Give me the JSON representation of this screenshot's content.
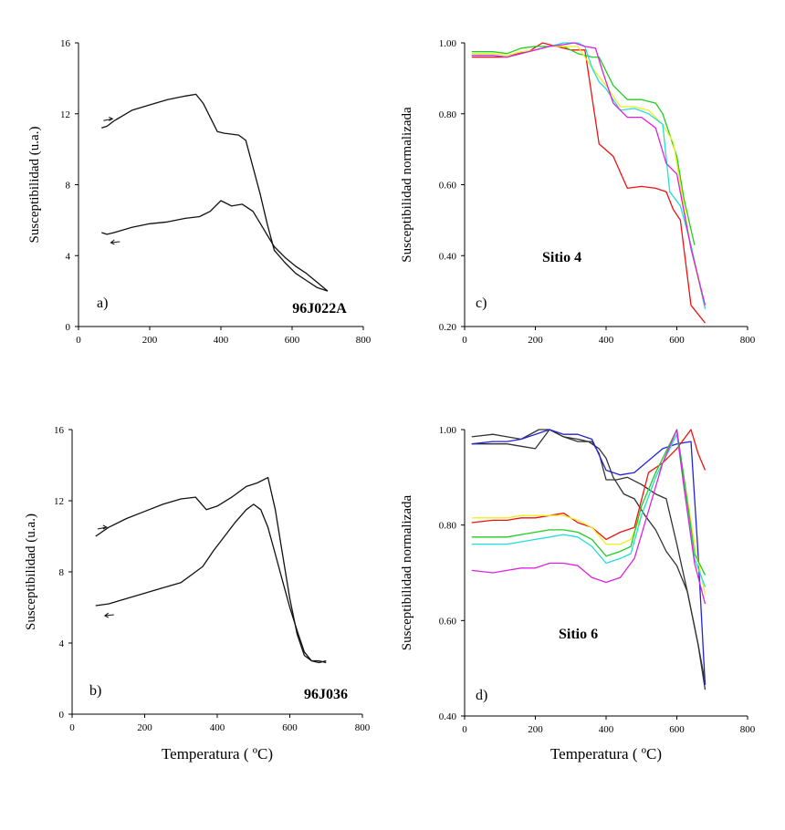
{
  "chart_data": [
    {
      "type": "line",
      "panel": "a)",
      "sample_label": "96J022A",
      "ylabel": "Susceptibilidad (u.a.)",
      "xlabel": "",
      "xlim": [
        0,
        800
      ],
      "ylim": [
        0,
        16
      ],
      "xticks": [
        "0",
        "200",
        "400",
        "600",
        "800"
      ],
      "yticks": [
        "0",
        "4",
        "8",
        "12",
        "16"
      ],
      "series": [
        {
          "name": "calentamiento",
          "color": "#111111",
          "x": [
            65,
            80,
            100,
            150,
            200,
            250,
            300,
            330,
            350,
            370,
            390,
            410,
            450,
            470,
            490,
            510,
            530,
            550,
            580,
            610,
            640,
            670,
            700
          ],
          "y": [
            11.2,
            11.3,
            11.6,
            12.2,
            12.5,
            12.8,
            13.0,
            13.1,
            12.6,
            11.8,
            11.0,
            10.9,
            10.8,
            10.5,
            9.0,
            7.5,
            5.8,
            4.3,
            3.6,
            3.0,
            2.6,
            2.2,
            2.0
          ]
        },
        {
          "name": "enfriamiento",
          "color": "#111111",
          "x": [
            65,
            80,
            100,
            150,
            200,
            250,
            300,
            340,
            370,
            400,
            430,
            460,
            490,
            520,
            550,
            580,
            610,
            640,
            670,
            700
          ],
          "y": [
            5.3,
            5.2,
            5.3,
            5.6,
            5.8,
            5.9,
            6.1,
            6.2,
            6.5,
            7.1,
            6.8,
            6.9,
            6.5,
            5.5,
            4.5,
            3.9,
            3.4,
            3.0,
            2.5,
            2.0
          ]
        }
      ]
    },
    {
      "type": "line",
      "panel": "b)",
      "sample_label": "96J036",
      "ylabel": "Susceptibilidad (u.a.)",
      "xlabel": "Temperatura ( ºC)",
      "xlim": [
        0,
        800
      ],
      "ylim": [
        0,
        16
      ],
      "xticks": [
        "0",
        "200",
        "400",
        "600",
        "800"
      ],
      "yticks": [
        "0",
        "4",
        "8",
        "12",
        "16"
      ],
      "series": [
        {
          "name": "calentamiento",
          "color": "#111111",
          "x": [
            65,
            100,
            150,
            200,
            250,
            300,
            340,
            370,
            400,
            440,
            480,
            510,
            540,
            560,
            580,
            600,
            620,
            640,
            660,
            680,
            700
          ],
          "y": [
            10.0,
            10.5,
            11.0,
            11.4,
            11.8,
            12.1,
            12.2,
            11.5,
            11.7,
            12.2,
            12.8,
            13.0,
            13.3,
            11.5,
            9.0,
            6.5,
            4.5,
            3.3,
            3.0,
            3.0,
            2.9
          ]
        },
        {
          "name": "enfriamiento",
          "color": "#111111",
          "x": [
            65,
            100,
            150,
            200,
            250,
            300,
            340,
            360,
            390,
            420,
            450,
            480,
            500,
            520,
            540,
            560,
            580,
            600,
            620,
            640,
            660,
            680,
            700
          ],
          "y": [
            6.1,
            6.2,
            6.5,
            6.8,
            7.1,
            7.4,
            8.0,
            8.3,
            9.2,
            10.0,
            10.8,
            11.5,
            11.8,
            11.5,
            10.5,
            9.0,
            7.5,
            6.0,
            4.7,
            3.5,
            3.0,
            2.9,
            3.0
          ]
        }
      ]
    },
    {
      "type": "line",
      "panel": "c)",
      "sample_label": "Sitio 4",
      "ylabel": "Susceptibilidad normalizada",
      "xlabel": "",
      "xlim": [
        0,
        800
      ],
      "ylim": [
        0.2,
        1.0
      ],
      "xticks": [
        "0",
        "200",
        "400",
        "600",
        "800"
      ],
      "yticks": [
        "0.20",
        "0.40",
        "0.60",
        "0.80",
        "1.00"
      ],
      "series": [
        {
          "name": "rojo",
          "color": "#ee1111",
          "x": [
            20,
            80,
            120,
            150,
            180,
            220,
            260,
            300,
            340,
            380,
            420,
            460,
            500,
            540,
            570,
            590,
            610,
            640,
            680
          ],
          "y": [
            0.96,
            0.96,
            0.96,
            0.97,
            0.975,
            1.0,
            0.99,
            0.98,
            0.98,
            0.715,
            0.68,
            0.59,
            0.595,
            0.59,
            0.58,
            0.53,
            0.5,
            0.26,
            0.21
          ]
        },
        {
          "name": "verde",
          "color": "#22cc22",
          "x": [
            20,
            80,
            120,
            160,
            200,
            240,
            280,
            320,
            360,
            380,
            420,
            460,
            500,
            540,
            560,
            580,
            600,
            620,
            650
          ],
          "y": [
            0.975,
            0.975,
            0.97,
            0.985,
            0.99,
            0.99,
            0.99,
            0.97,
            0.96,
            0.96,
            0.88,
            0.84,
            0.84,
            0.83,
            0.8,
            0.74,
            0.68,
            0.56,
            0.43
          ]
        },
        {
          "name": "amarillo",
          "color": "#eeee22",
          "x": [
            20,
            80,
            120,
            160,
            200,
            240,
            280,
            320,
            360,
            400,
            440,
            480,
            520,
            560,
            590,
            610,
            640,
            680
          ],
          "y": [
            0.97,
            0.97,
            0.965,
            0.975,
            0.98,
            0.99,
            0.99,
            0.99,
            0.93,
            0.88,
            0.82,
            0.82,
            0.81,
            0.77,
            0.72,
            0.6,
            0.42,
            0.25
          ]
        },
        {
          "name": "cian",
          "color": "#22dddd",
          "x": [
            20,
            80,
            120,
            160,
            200,
            240,
            280,
            320,
            340,
            360,
            380,
            400,
            440,
            480,
            520,
            560,
            580,
            610,
            640,
            680
          ],
          "y": [
            0.965,
            0.965,
            0.96,
            0.97,
            0.98,
            0.99,
            1.0,
            1.0,
            0.99,
            0.93,
            0.89,
            0.87,
            0.81,
            0.815,
            0.8,
            0.77,
            0.58,
            0.54,
            0.43,
            0.25
          ]
        },
        {
          "name": "magenta",
          "color": "#dd22dd",
          "x": [
            20,
            80,
            120,
            160,
            200,
            240,
            280,
            310,
            340,
            370,
            390,
            420,
            460,
            500,
            540,
            570,
            600,
            640,
            680
          ],
          "y": [
            0.965,
            0.965,
            0.96,
            0.97,
            0.98,
            0.99,
            0.995,
            1.0,
            0.99,
            0.985,
            0.92,
            0.83,
            0.79,
            0.79,
            0.76,
            0.66,
            0.63,
            0.42,
            0.26
          ]
        }
      ]
    },
    {
      "type": "line",
      "panel": "d)",
      "sample_label": "Sitio 6",
      "ylabel": "Susceptibilidad normalizada",
      "xlabel": "Temperatura ( ºC)",
      "xlim": [
        0,
        800
      ],
      "ylim": [
        0.4,
        1.0
      ],
      "xticks": [
        "0",
        "200",
        "400",
        "600",
        "800"
      ],
      "yticks": [
        "0.40",
        "0.60",
        "0.80",
        "1.00"
      ],
      "series": [
        {
          "name": "negro 1",
          "color": "#333333",
          "x": [
            20,
            80,
            120,
            160,
            210,
            240,
            280,
            320,
            350,
            380,
            400,
            420,
            450,
            480,
            510,
            540,
            570,
            600,
            630,
            660,
            680
          ],
          "y": [
            0.985,
            0.99,
            0.985,
            0.98,
            1.0,
            1.0,
            0.985,
            0.98,
            0.975,
            0.96,
            0.94,
            0.9,
            0.865,
            0.855,
            0.82,
            0.79,
            0.745,
            0.715,
            0.66,
            0.55,
            0.47
          ]
        },
        {
          "name": "negro 2",
          "color": "#333333",
          "x": [
            20,
            80,
            120,
            160,
            200,
            240,
            280,
            320,
            360,
            380,
            400,
            430,
            460,
            500,
            540,
            570,
            600,
            630,
            660,
            680
          ],
          "y": [
            0.97,
            0.97,
            0.97,
            0.965,
            0.96,
            1.0,
            0.985,
            0.975,
            0.975,
            0.95,
            0.895,
            0.895,
            0.9,
            0.885,
            0.865,
            0.855,
            0.76,
            0.66,
            0.55,
            0.455
          ]
        },
        {
          "name": "azul",
          "color": "#2222dd",
          "x": [
            20,
            80,
            120,
            160,
            200,
            240,
            280,
            320,
            360,
            400,
            440,
            480,
            520,
            560,
            600,
            640,
            660,
            680
          ],
          "y": [
            0.97,
            0.975,
            0.975,
            0.98,
            0.99,
            1.0,
            0.99,
            0.99,
            0.98,
            0.915,
            0.905,
            0.91,
            0.935,
            0.96,
            0.97,
            0.975,
            0.74,
            0.465
          ]
        },
        {
          "name": "rojo",
          "color": "#ee1111",
          "x": [
            20,
            80,
            120,
            160,
            200,
            240,
            280,
            320,
            360,
            400,
            440,
            480,
            520,
            560,
            600,
            640,
            660,
            680
          ],
          "y": [
            0.805,
            0.81,
            0.81,
            0.815,
            0.815,
            0.82,
            0.825,
            0.805,
            0.795,
            0.77,
            0.785,
            0.795,
            0.91,
            0.93,
            0.96,
            1.0,
            0.95,
            0.915
          ]
        },
        {
          "name": "amarillo",
          "color": "#eeee22",
          "x": [
            20,
            80,
            120,
            160,
            200,
            240,
            280,
            320,
            360,
            400,
            440,
            470,
            500,
            540,
            580,
            600,
            620,
            650,
            680
          ],
          "y": [
            0.815,
            0.815,
            0.815,
            0.82,
            0.82,
            0.82,
            0.82,
            0.81,
            0.795,
            0.76,
            0.76,
            0.77,
            0.82,
            0.9,
            0.96,
            0.99,
            0.9,
            0.76,
            0.655
          ]
        },
        {
          "name": "verde",
          "color": "#22cc22",
          "x": [
            20,
            80,
            120,
            160,
            200,
            240,
            280,
            320,
            360,
            400,
            440,
            470,
            500,
            540,
            580,
            600,
            620,
            650,
            680
          ],
          "y": [
            0.775,
            0.775,
            0.775,
            0.78,
            0.785,
            0.79,
            0.79,
            0.785,
            0.77,
            0.735,
            0.745,
            0.755,
            0.84,
            0.91,
            0.97,
            1.0,
            0.9,
            0.74,
            0.695
          ]
        },
        {
          "name": "cian",
          "color": "#22dddd",
          "x": [
            20,
            80,
            120,
            160,
            200,
            240,
            280,
            320,
            360,
            400,
            440,
            470,
            500,
            540,
            580,
            600,
            620,
            650,
            680
          ],
          "y": [
            0.76,
            0.76,
            0.76,
            0.765,
            0.77,
            0.775,
            0.78,
            0.775,
            0.755,
            0.72,
            0.73,
            0.74,
            0.82,
            0.9,
            0.96,
            0.99,
            0.88,
            0.73,
            0.67
          ]
        },
        {
          "name": "magenta",
          "color": "#dd22dd",
          "x": [
            20,
            80,
            120,
            160,
            200,
            240,
            280,
            320,
            360,
            400,
            440,
            480,
            520,
            560,
            600,
            620,
            650,
            680
          ],
          "y": [
            0.705,
            0.7,
            0.705,
            0.71,
            0.71,
            0.72,
            0.72,
            0.715,
            0.69,
            0.68,
            0.69,
            0.73,
            0.83,
            0.93,
            1.0,
            0.88,
            0.72,
            0.635
          ]
        }
      ]
    }
  ]
}
